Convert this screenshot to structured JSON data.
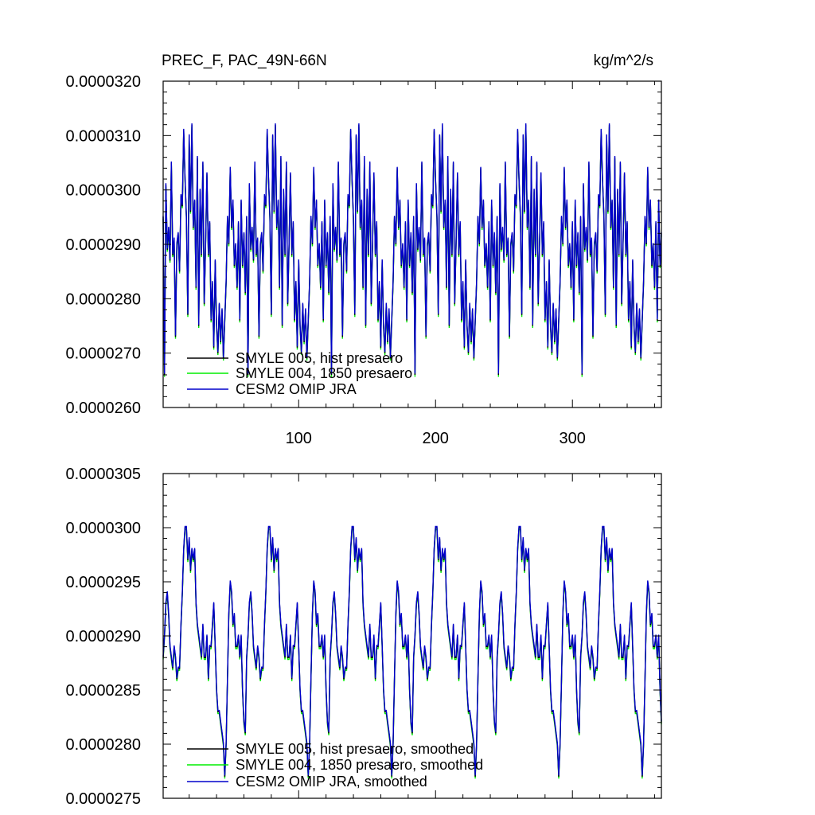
{
  "chart_data": [
    {
      "type": "line",
      "title_left": "PREC_F, PAC_49N-66N",
      "title_right": "kg/m^2/s",
      "xlim": [
        1,
        365
      ],
      "ylim": [
        2.6e-05,
        3.2e-05
      ],
      "xticks": [
        100,
        200,
        300
      ],
      "xtick_labels": [
        "100",
        "200",
        "300"
      ],
      "yticks": [
        2.6e-05,
        2.7e-05,
        2.8e-05,
        2.9e-05,
        3e-05,
        3.1e-05,
        3.2e-05
      ],
      "ytick_labels": [
        "0.0000260",
        "0.0000270",
        "0.0000280",
        "0.0000290",
        "0.0000300",
        "0.0000310",
        "0.0000320"
      ],
      "legend_position": "bottom-left",
      "series": [
        {
          "name": "SMYLE 005, hist presaero",
          "color": "#000000"
        },
        {
          "name": "SMYLE 004, 1850 presaero",
          "color": "#00ee00"
        },
        {
          "name": "CESM2 OMIP JRA",
          "color": "#0000cc"
        }
      ],
      "pattern": {
        "period": 61,
        "x": [
          1,
          2,
          3,
          4,
          5,
          6,
          7,
          8,
          9,
          10,
          11,
          12,
          13,
          14,
          15,
          16,
          17,
          18,
          19,
          20,
          21,
          22,
          23,
          24,
          25,
          26,
          27,
          28,
          29,
          30,
          31,
          32,
          33,
          34,
          35,
          36,
          37,
          38,
          39,
          40,
          41,
          42,
          43,
          44,
          45,
          46,
          47,
          48,
          49,
          50,
          51,
          52,
          53,
          54,
          55,
          56,
          57,
          58,
          59,
          60,
          61
        ],
        "values": [
          2.95e-05,
          2.66e-05,
          3.01e-05,
          2.89e-05,
          2.93e-05,
          2.87e-05,
          3.05e-05,
          2.88e-05,
          2.91e-05,
          2.73e-05,
          2.9e-05,
          2.92e-05,
          2.85e-05,
          2.99e-05,
          2.97e-05,
          3.11e-05,
          3.02e-05,
          2.95e-05,
          2.77e-05,
          3.1e-05,
          2.96e-05,
          3.12e-05,
          2.93e-05,
          2.98e-05,
          2.82e-05,
          3.06e-05,
          2.75e-05,
          3e-05,
          2.88e-05,
          3.05e-05,
          2.79e-05,
          2.9e-05,
          3.03e-05,
          2.88e-05,
          2.94e-05,
          2.76e-05,
          2.83e-05,
          2.71e-05,
          2.87e-05,
          2.75e-05,
          2.7e-05,
          2.79e-05,
          2.72e-05,
          2.78e-05,
          2.69e-05,
          2.76e-05,
          2.83e-05,
          2.95e-05,
          2.9e-05,
          3.04e-05,
          2.93e-05,
          2.98e-05,
          2.86e-05,
          2.9e-05,
          2.82e-05,
          2.94e-05,
          2.76e-05,
          2.98e-05,
          2.86e-05,
          2.92e-05,
          2.81e-05
        ]
      }
    },
    {
      "type": "line",
      "xlim": [
        1,
        365
      ],
      "ylim": [
        2.75e-05,
        3.05e-05
      ],
      "xticks": [
        100,
        200,
        300
      ],
      "yticks": [
        2.75e-05,
        2.8e-05,
        2.85e-05,
        2.9e-05,
        2.95e-05,
        3e-05,
        3.05e-05
      ],
      "ytick_labels": [
        "0.0000275",
        "0.0000280",
        "0.0000285",
        "0.0000290",
        "0.0000295",
        "0.0000300",
        "0.0000305"
      ],
      "legend_position": "bottom-left",
      "series": [
        {
          "name": "SMYLE 005, hist presaero, smoothed",
          "color": "#000000"
        },
        {
          "name": "SMYLE 004, 1850 presaero, smoothed",
          "color": "#00ee00"
        },
        {
          "name": "CESM2 OMIP JRA, smoothed",
          "color": "#0000cc"
        }
      ],
      "pattern": {
        "period": 61,
        "x": [
          1,
          2,
          3,
          4,
          5,
          6,
          7,
          8,
          9,
          10,
          11,
          12,
          13,
          14,
          15,
          16,
          17,
          18,
          19,
          20,
          21,
          22,
          23,
          24,
          25,
          26,
          27,
          28,
          29,
          30,
          31,
          32,
          33,
          34,
          35,
          36,
          37,
          38,
          39,
          40,
          41,
          42,
          43,
          44,
          45,
          46,
          47,
          48,
          49,
          50,
          51,
          52,
          53,
          54,
          55,
          56,
          57,
          58,
          59,
          60,
          61
        ],
        "values": [
          2.88e-05,
          2.9e-05,
          2.93e-05,
          2.94e-05,
          2.92e-05,
          2.89e-05,
          2.88e-05,
          2.87e-05,
          2.89e-05,
          2.88e-05,
          2.86e-05,
          2.87e-05,
          2.87e-05,
          2.91e-05,
          2.94e-05,
          2.98e-05,
          3e-05,
          3e-05,
          2.97e-05,
          2.99e-05,
          2.96e-05,
          2.98e-05,
          2.97e-05,
          2.98e-05,
          2.93e-05,
          2.91e-05,
          2.9e-05,
          2.89e-05,
          2.88e-05,
          2.91e-05,
          2.88e-05,
          2.88e-05,
          2.9e-05,
          2.86e-05,
          2.89e-05,
          2.89e-05,
          2.91e-05,
          2.93e-05,
          2.89e-05,
          2.85e-05,
          2.83e-05,
          2.83e-05,
          2.82e-05,
          2.81e-05,
          2.8e-05,
          2.77e-05,
          2.8e-05,
          2.86e-05,
          2.92e-05,
          2.95e-05,
          2.94e-05,
          2.91e-05,
          2.92e-05,
          2.89e-05,
          2.89e-05,
          2.9e-05,
          2.88e-05,
          2.9e-05,
          2.85e-05,
          2.82e-05,
          2.81e-05
        ]
      }
    }
  ]
}
